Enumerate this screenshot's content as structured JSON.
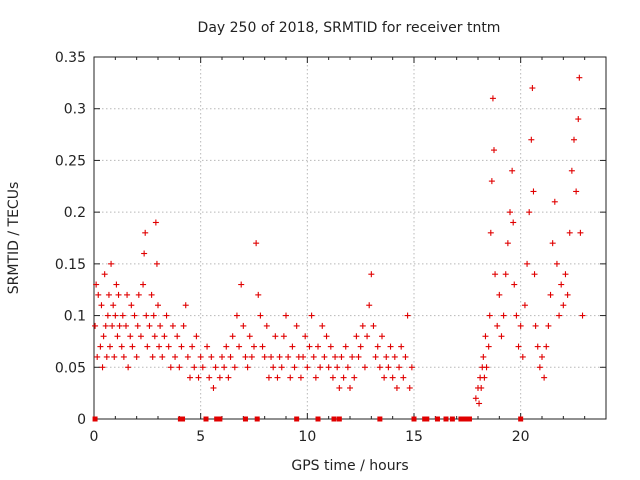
{
  "chart_data": {
    "type": "scatter",
    "title": "Day 250 of 2018, SRMTID for receiver tntm",
    "xlabel": "GPS time / hours",
    "ylabel": "SRMTID / TECUs",
    "xlim": [
      0,
      24
    ],
    "ylim": [
      0,
      0.35
    ],
    "x_ticks": [
      0,
      5,
      10,
      15,
      20
    ],
    "x_tick_labels": [
      "0",
      "5",
      "10",
      "15",
      "20"
    ],
    "y_ticks": [
      0,
      0.05,
      0.1,
      0.15,
      0.2,
      0.25,
      0.3,
      0.35
    ],
    "y_tick_labels": [
      "0",
      "0.05",
      "0.1",
      "0.15",
      "0.2",
      "0.25",
      "0.3",
      "0.35"
    ],
    "grid": true,
    "marker": "+",
    "color": "#e00000",
    "series": [
      {
        "name": "SRMTID",
        "points": [
          [
            0.05,
            0.09
          ],
          [
            0.1,
            0.13
          ],
          [
            0.15,
            0.06
          ],
          [
            0.2,
            0.12
          ],
          [
            0.3,
            0.07
          ],
          [
            0.35,
            0.11
          ],
          [
            0.4,
            0.05
          ],
          [
            0.45,
            0.08
          ],
          [
            0.5,
            0.14
          ],
          [
            0.55,
            0.09
          ],
          [
            0.6,
            0.06
          ],
          [
            0.65,
            0.1
          ],
          [
            0.7,
            0.12
          ],
          [
            0.75,
            0.07
          ],
          [
            0.8,
            0.15
          ],
          [
            0.85,
            0.09
          ],
          [
            0.9,
            0.11
          ],
          [
            0.95,
            0.06
          ],
          [
            1.0,
            0.1
          ],
          [
            1.05,
            0.13
          ],
          [
            1.1,
            0.08
          ],
          [
            1.15,
            0.12
          ],
          [
            1.2,
            0.09
          ],
          [
            1.3,
            0.07
          ],
          [
            1.35,
            0.1
          ],
          [
            1.4,
            0.06
          ],
          [
            1.5,
            0.09
          ],
          [
            1.55,
            0.12
          ],
          [
            1.6,
            0.05
          ],
          [
            1.7,
            0.08
          ],
          [
            1.75,
            0.11
          ],
          [
            1.8,
            0.07
          ],
          [
            1.9,
            0.1
          ],
          [
            2.0,
            0.06
          ],
          [
            2.05,
            0.09
          ],
          [
            2.1,
            0.12
          ],
          [
            2.2,
            0.08
          ],
          [
            2.3,
            0.13
          ],
          [
            2.35,
            0.16
          ],
          [
            2.4,
            0.18
          ],
          [
            2.45,
            0.1
          ],
          [
            2.5,
            0.07
          ],
          [
            2.6,
            0.09
          ],
          [
            2.7,
            0.12
          ],
          [
            2.75,
            0.06
          ],
          [
            2.8,
            0.1
          ],
          [
            2.85,
            0.08
          ],
          [
            2.9,
            0.19
          ],
          [
            2.95,
            0.15
          ],
          [
            3.0,
            0.11
          ],
          [
            3.05,
            0.07
          ],
          [
            3.1,
            0.09
          ],
          [
            3.2,
            0.06
          ],
          [
            3.3,
            0.08
          ],
          [
            3.4,
            0.1
          ],
          [
            3.5,
            0.07
          ],
          [
            3.6,
            0.05
          ],
          [
            3.7,
            0.09
          ],
          [
            3.8,
            0.06
          ],
          [
            3.9,
            0.08
          ],
          [
            4.0,
            0.05
          ],
          [
            4.1,
            0.07
          ],
          [
            4.2,
            0.09
          ],
          [
            4.3,
            0.11
          ],
          [
            4.4,
            0.06
          ],
          [
            4.5,
            0.04
          ],
          [
            4.6,
            0.07
          ],
          [
            4.7,
            0.05
          ],
          [
            4.8,
            0.08
          ],
          [
            4.9,
            0.04
          ],
          [
            5.0,
            0.06
          ],
          [
            5.1,
            0.05
          ],
          [
            5.3,
            0.07
          ],
          [
            5.4,
            0.04
          ],
          [
            5.5,
            0.06
          ],
          [
            5.6,
            0.03
          ],
          [
            5.7,
            0.05
          ],
          [
            5.9,
            0.04
          ],
          [
            6.0,
            0.06
          ],
          [
            6.1,
            0.05
          ],
          [
            6.2,
            0.07
          ],
          [
            6.3,
            0.04
          ],
          [
            6.4,
            0.06
          ],
          [
            6.5,
            0.08
          ],
          [
            6.6,
            0.05
          ],
          [
            6.7,
            0.1
          ],
          [
            6.8,
            0.07
          ],
          [
            6.9,
            0.13
          ],
          [
            7.0,
            0.09
          ],
          [
            7.1,
            0.06
          ],
          [
            7.2,
            0.05
          ],
          [
            7.3,
            0.08
          ],
          [
            7.4,
            0.06
          ],
          [
            7.5,
            0.07
          ],
          [
            7.6,
            0.17
          ],
          [
            7.7,
            0.12
          ],
          [
            7.8,
            0.1
          ],
          [
            7.9,
            0.07
          ],
          [
            8.0,
            0.06
          ],
          [
            8.1,
            0.09
          ],
          [
            8.2,
            0.04
          ],
          [
            8.3,
            0.06
          ],
          [
            8.4,
            0.05
          ],
          [
            8.5,
            0.08
          ],
          [
            8.6,
            0.04
          ],
          [
            8.7,
            0.06
          ],
          [
            8.8,
            0.05
          ],
          [
            8.9,
            0.08
          ],
          [
            9.0,
            0.1
          ],
          [
            9.1,
            0.06
          ],
          [
            9.2,
            0.04
          ],
          [
            9.3,
            0.07
          ],
          [
            9.4,
            0.05
          ],
          [
            9.5,
            0.09
          ],
          [
            9.6,
            0.06
          ],
          [
            9.7,
            0.04
          ],
          [
            9.8,
            0.06
          ],
          [
            9.9,
            0.08
          ],
          [
            10.0,
            0.05
          ],
          [
            10.1,
            0.07
          ],
          [
            10.2,
            0.1
          ],
          [
            10.3,
            0.06
          ],
          [
            10.4,
            0.04
          ],
          [
            10.5,
            0.07
          ],
          [
            10.6,
            0.05
          ],
          [
            10.7,
            0.09
          ],
          [
            10.8,
            0.06
          ],
          [
            10.9,
            0.08
          ],
          [
            11.0,
            0.05
          ],
          [
            11.1,
            0.07
          ],
          [
            11.2,
            0.04
          ],
          [
            11.3,
            0.06
          ],
          [
            11.4,
            0.05
          ],
          [
            11.5,
            0.03
          ],
          [
            11.6,
            0.06
          ],
          [
            11.7,
            0.04
          ],
          [
            11.8,
            0.07
          ],
          [
            11.9,
            0.05
          ],
          [
            12.0,
            0.03
          ],
          [
            12.1,
            0.06
          ],
          [
            12.2,
            0.04
          ],
          [
            12.3,
            0.08
          ],
          [
            12.4,
            0.06
          ],
          [
            12.5,
            0.07
          ],
          [
            12.6,
            0.09
          ],
          [
            12.7,
            0.05
          ],
          [
            12.8,
            0.08
          ],
          [
            12.9,
            0.11
          ],
          [
            13.0,
            0.14
          ],
          [
            13.1,
            0.09
          ],
          [
            13.2,
            0.06
          ],
          [
            13.3,
            0.07
          ],
          [
            13.4,
            0.05
          ],
          [
            13.5,
            0.08
          ],
          [
            13.6,
            0.04
          ],
          [
            13.7,
            0.06
          ],
          [
            13.8,
            0.05
          ],
          [
            13.9,
            0.07
          ],
          [
            14.0,
            0.04
          ],
          [
            14.1,
            0.06
          ],
          [
            14.2,
            0.03
          ],
          [
            14.3,
            0.05
          ],
          [
            14.4,
            0.07
          ],
          [
            14.5,
            0.04
          ],
          [
            14.6,
            0.06
          ],
          [
            14.7,
            0.1
          ],
          [
            14.8,
            0.03
          ],
          [
            14.9,
            0.05
          ],
          [
            17.9,
            0.02
          ],
          [
            18.0,
            0.03
          ],
          [
            18.05,
            0.015
          ],
          [
            18.1,
            0.04
          ],
          [
            18.15,
            0.03
          ],
          [
            18.2,
            0.05
          ],
          [
            18.25,
            0.06
          ],
          [
            18.3,
            0.04
          ],
          [
            18.35,
            0.08
          ],
          [
            18.4,
            0.05
          ],
          [
            18.5,
            0.07
          ],
          [
            18.55,
            0.1
          ],
          [
            18.6,
            0.18
          ],
          [
            18.65,
            0.23
          ],
          [
            18.7,
            0.31
          ],
          [
            18.75,
            0.26
          ],
          [
            18.8,
            0.14
          ],
          [
            18.9,
            0.09
          ],
          [
            19.0,
            0.12
          ],
          [
            19.1,
            0.08
          ],
          [
            19.2,
            0.1
          ],
          [
            19.3,
            0.14
          ],
          [
            19.4,
            0.17
          ],
          [
            19.5,
            0.2
          ],
          [
            19.6,
            0.24
          ],
          [
            19.65,
            0.19
          ],
          [
            19.7,
            0.13
          ],
          [
            19.8,
            0.1
          ],
          [
            19.9,
            0.07
          ],
          [
            20.0,
            0.09
          ],
          [
            20.1,
            0.06
          ],
          [
            20.2,
            0.11
          ],
          [
            20.3,
            0.15
          ],
          [
            20.4,
            0.2
          ],
          [
            20.5,
            0.27
          ],
          [
            20.55,
            0.32
          ],
          [
            20.6,
            0.22
          ],
          [
            20.65,
            0.14
          ],
          [
            20.7,
            0.09
          ],
          [
            20.8,
            0.07
          ],
          [
            20.9,
            0.05
          ],
          [
            21.0,
            0.06
          ],
          [
            21.1,
            0.04
          ],
          [
            21.2,
            0.07
          ],
          [
            21.3,
            0.09
          ],
          [
            21.4,
            0.12
          ],
          [
            21.5,
            0.17
          ],
          [
            21.6,
            0.21
          ],
          [
            21.7,
            0.15
          ],
          [
            21.8,
            0.1
          ],
          [
            21.9,
            0.13
          ],
          [
            22.0,
            0.11
          ],
          [
            22.1,
            0.14
          ],
          [
            22.2,
            0.12
          ],
          [
            22.3,
            0.18
          ],
          [
            22.4,
            0.24
          ],
          [
            22.5,
            0.27
          ],
          [
            22.6,
            0.22
          ],
          [
            22.7,
            0.29
          ],
          [
            22.75,
            0.33
          ],
          [
            22.8,
            0.18
          ],
          [
            22.9,
            0.1
          ]
        ],
        "zero_gap_markers": [
          0.05,
          4.05,
          4.15,
          5.25,
          5.75,
          5.9,
          7.1,
          7.65,
          9.5,
          10.5,
          11.25,
          11.5,
          13.4,
          15.0,
          15.5,
          15.6,
          16.1,
          16.5,
          16.8,
          17.2,
          17.4,
          17.6,
          20.0
        ]
      }
    ]
  }
}
